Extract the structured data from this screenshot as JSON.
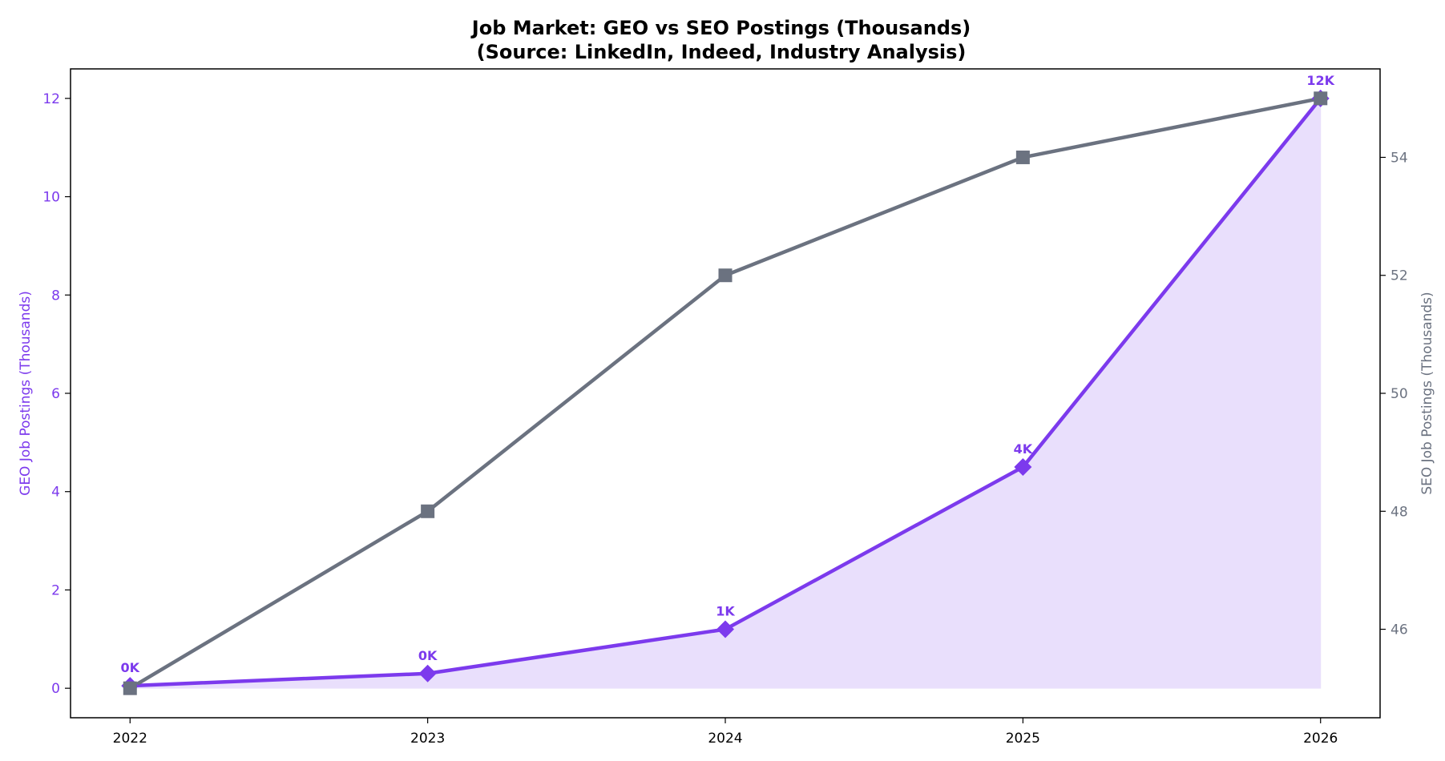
{
  "chart_data": {
    "type": "line",
    "title": "Job Market: GEO vs SEO Postings (Thousands)",
    "subtitle": "(Source: LinkedIn, Indeed, Industry Analysis)",
    "x": [
      2022,
      2023,
      2024,
      2025,
      2026
    ],
    "x_tick_labels": [
      "2022",
      "2023",
      "2024",
      "2025",
      "2026"
    ],
    "xlim": [
      2021.8,
      2026.2
    ],
    "y_left": {
      "label": "GEO Job Postings (Thousands)",
      "ylim": [
        -0.6,
        12.6
      ],
      "ticks": [
        0,
        2,
        4,
        6,
        8,
        10,
        12
      ],
      "tick_labels": [
        "0",
        "2",
        "4",
        "6",
        "8",
        "10",
        "12"
      ],
      "color": "#7c3aed"
    },
    "y_right": {
      "label": "SEO Job Postings (Thousands)",
      "ylim": [
        44.5,
        55.5
      ],
      "ticks": [
        46,
        48,
        50,
        52,
        54
      ],
      "tick_labels": [
        "46",
        "48",
        "50",
        "52",
        "54"
      ],
      "color": "#6b7280"
    },
    "series": [
      {
        "axis": "left",
        "values": [
          0.05,
          0.3,
          1.2,
          4.5,
          12.0
        ],
        "data_labels": [
          "0K",
          "0K",
          "1K",
          "4K",
          "12K"
        ],
        "marker": "diamond",
        "fill_area": true,
        "color": "#7c3aed",
        "fill_color": "#e9dffc"
      },
      {
        "axis": "right",
        "values": [
          45.0,
          48.0,
          52.0,
          54.0,
          55.0
        ],
        "marker": "square",
        "fill_area": false,
        "color": "#6b7280"
      }
    ],
    "grid": false,
    "legend": "none"
  }
}
